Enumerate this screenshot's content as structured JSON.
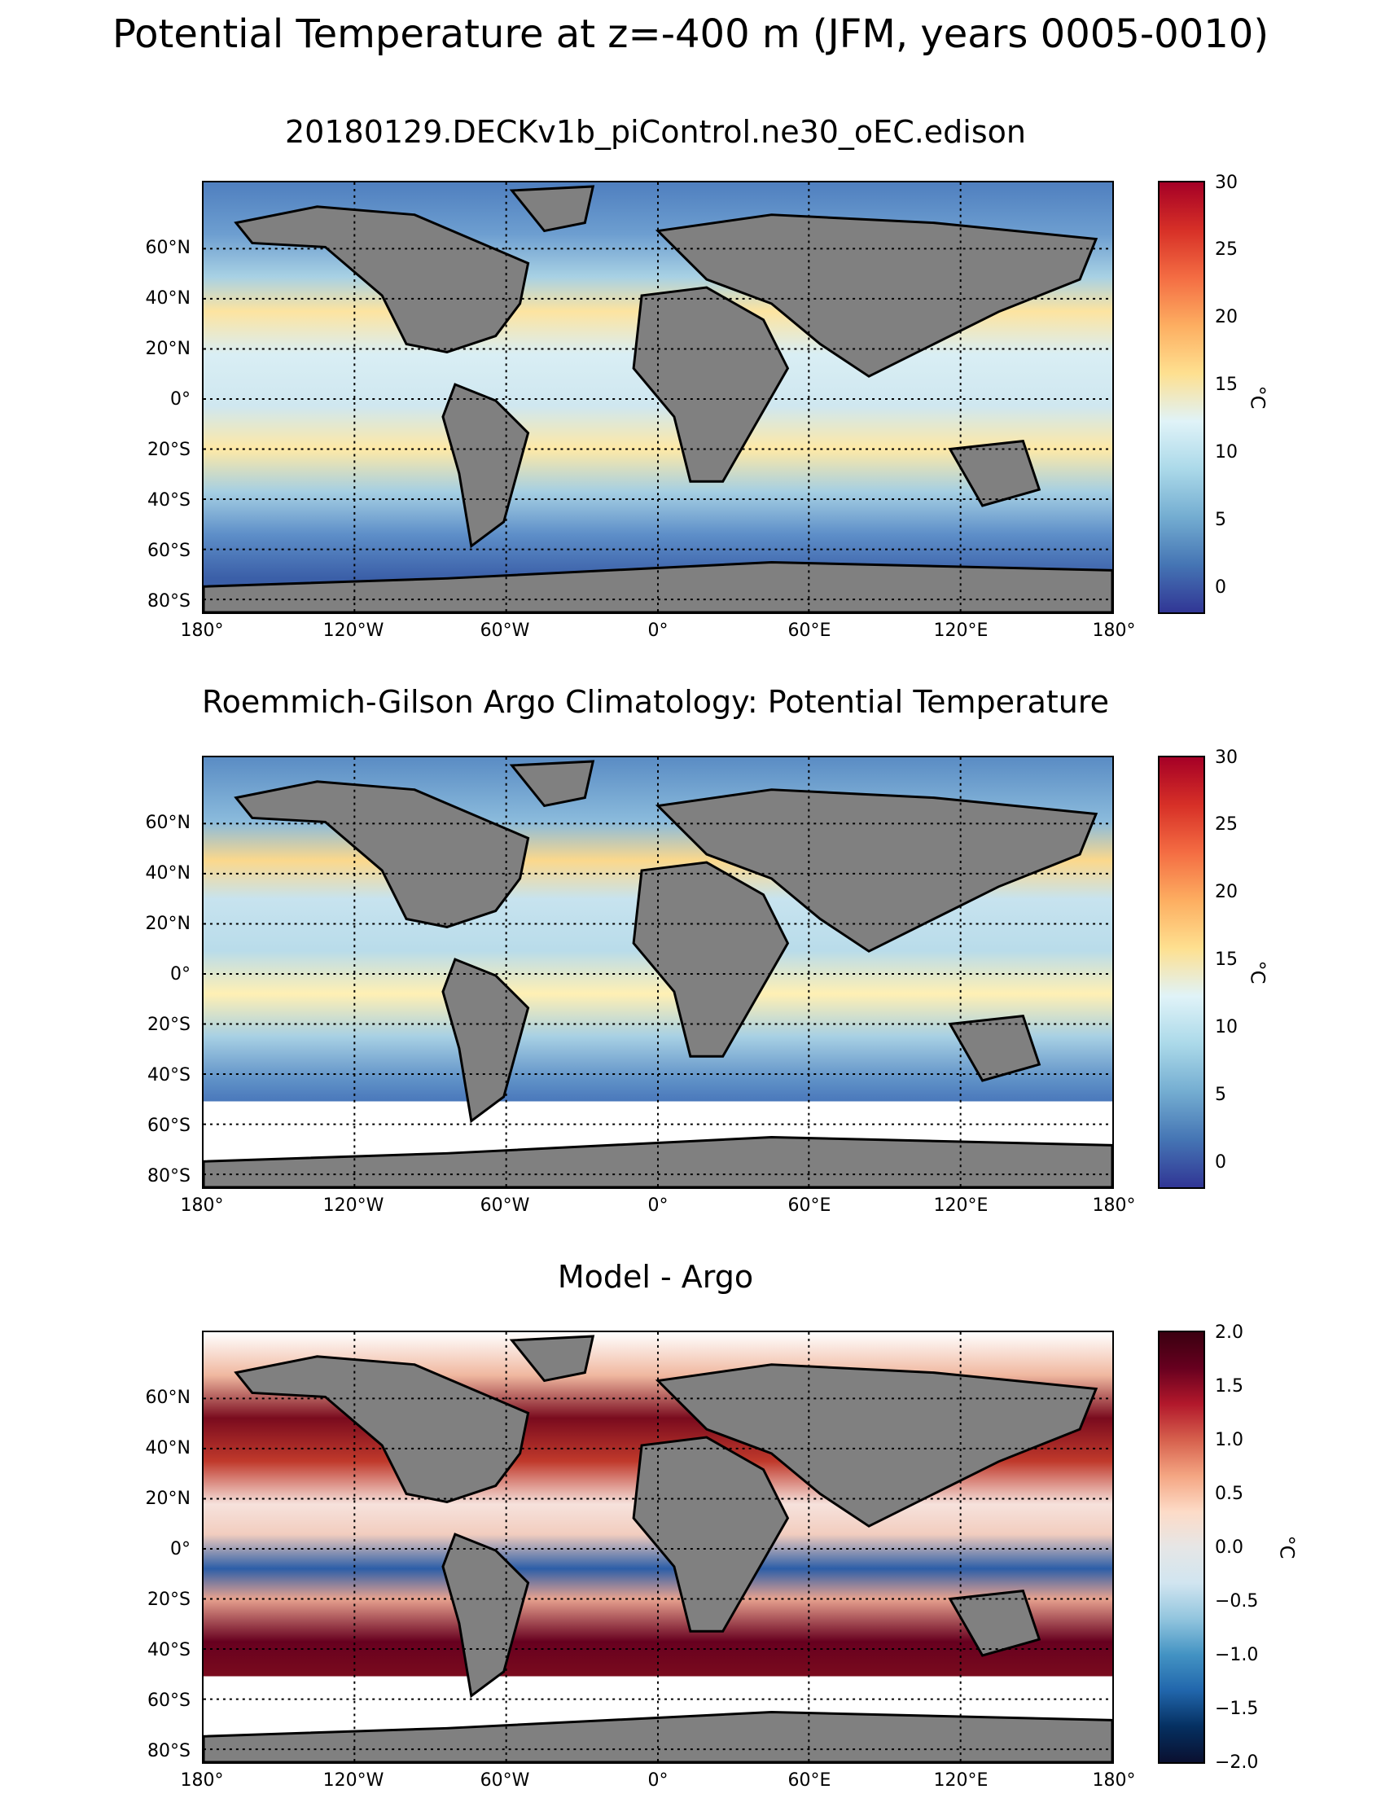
{
  "figure": {
    "suptitle": "Potential Temperature at z=-400 m (JFM, years 0005-0010)"
  },
  "panels": [
    {
      "title": "20180129.DECKv1b_piControl.ne30_oEC.edison",
      "colorbar": {
        "label": "°C",
        "ticks": [
          "30",
          "25",
          "20",
          "15",
          "10",
          "5",
          "0"
        ],
        "range": [
          -2,
          30
        ],
        "colormap": "RdYlBu_r"
      }
    },
    {
      "title": "Roemmich-Gilson Argo Climatology: Potential Temperature",
      "colorbar": {
        "label": "°C",
        "ticks": [
          "30",
          "25",
          "20",
          "15",
          "10",
          "5",
          "0"
        ],
        "range": [
          -2,
          30
        ],
        "colormap": "RdYlBu_r"
      }
    },
    {
      "title": "Model - Argo",
      "colorbar": {
        "label": "°C",
        "ticks": [
          "2.0",
          "1.5",
          "1.0",
          "0.5",
          "0.0",
          "−0.5",
          "−1.0",
          "−1.5",
          "−2.0"
        ],
        "range": [
          -2,
          2
        ],
        "colormap": "RdBu_r"
      }
    }
  ],
  "axes": {
    "lat_labels": [
      "60°N",
      "40°N",
      "20°N",
      "0°",
      "20°S",
      "40°S",
      "60°S",
      "80°S"
    ],
    "lon_labels": [
      "180°",
      "120°W",
      "60°W",
      "0°",
      "60°E",
      "120°E",
      "180°"
    ]
  },
  "colors": {
    "land": "#808080",
    "nodata": "#ffffff",
    "grid": "#000000"
  }
}
